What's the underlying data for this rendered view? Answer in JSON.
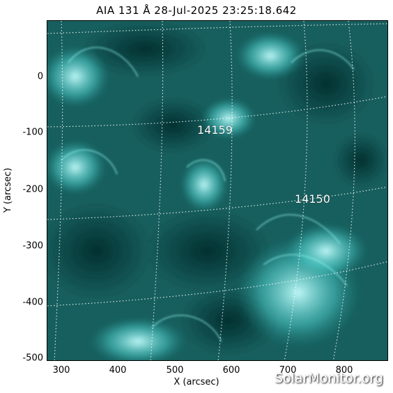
{
  "title": "AIA 131 Å 28-Jul-2025 23:25:18.642",
  "axes": {
    "xlabel": "X (arcsec)",
    "ylabel": "Y (arcsec)",
    "xticks": [
      "300",
      "400",
      "500",
      "600",
      "700",
      "800"
    ],
    "yticks": [
      "0",
      "-100",
      "-200",
      "-300",
      "-400",
      "-500"
    ]
  },
  "active_regions": [
    {
      "label": "14159"
    },
    {
      "label": "14150"
    }
  ],
  "watermark": "SolarMonitor.org",
  "colors": {
    "disk_dark": "#0b3a3a",
    "disk_mid": "#1f8f8c",
    "disk_bright": "#b8ffff"
  }
}
